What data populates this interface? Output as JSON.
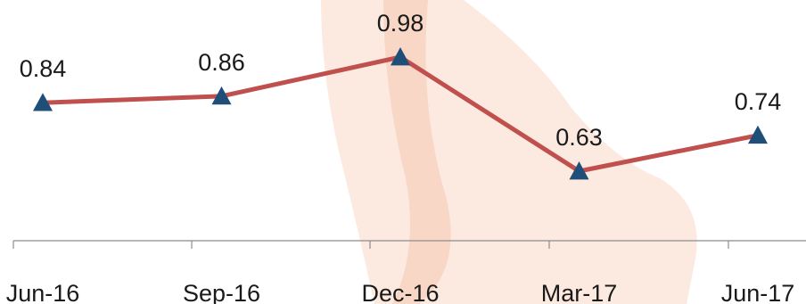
{
  "chart_data": {
    "type": "line",
    "categories": [
      "Jun-16",
      "Sep-16",
      "Dec-16",
      "Mar-17",
      "Jun-17"
    ],
    "series": [
      {
        "values": [
          0.84,
          0.86,
          0.98,
          0.63,
          0.74
        ]
      }
    ],
    "data_labels": [
      "0.84",
      "0.86",
      "0.98",
      "0.63",
      "0.74"
    ],
    "ylim": [
      0.3,
      1.1
    ],
    "grid": false,
    "legend": "none",
    "marker": "triangle",
    "colors": {
      "line": "#c0504d",
      "marker": "#1f4e79",
      "axis": "#8c8c8c",
      "watermark": "#f9d9c7"
    }
  }
}
